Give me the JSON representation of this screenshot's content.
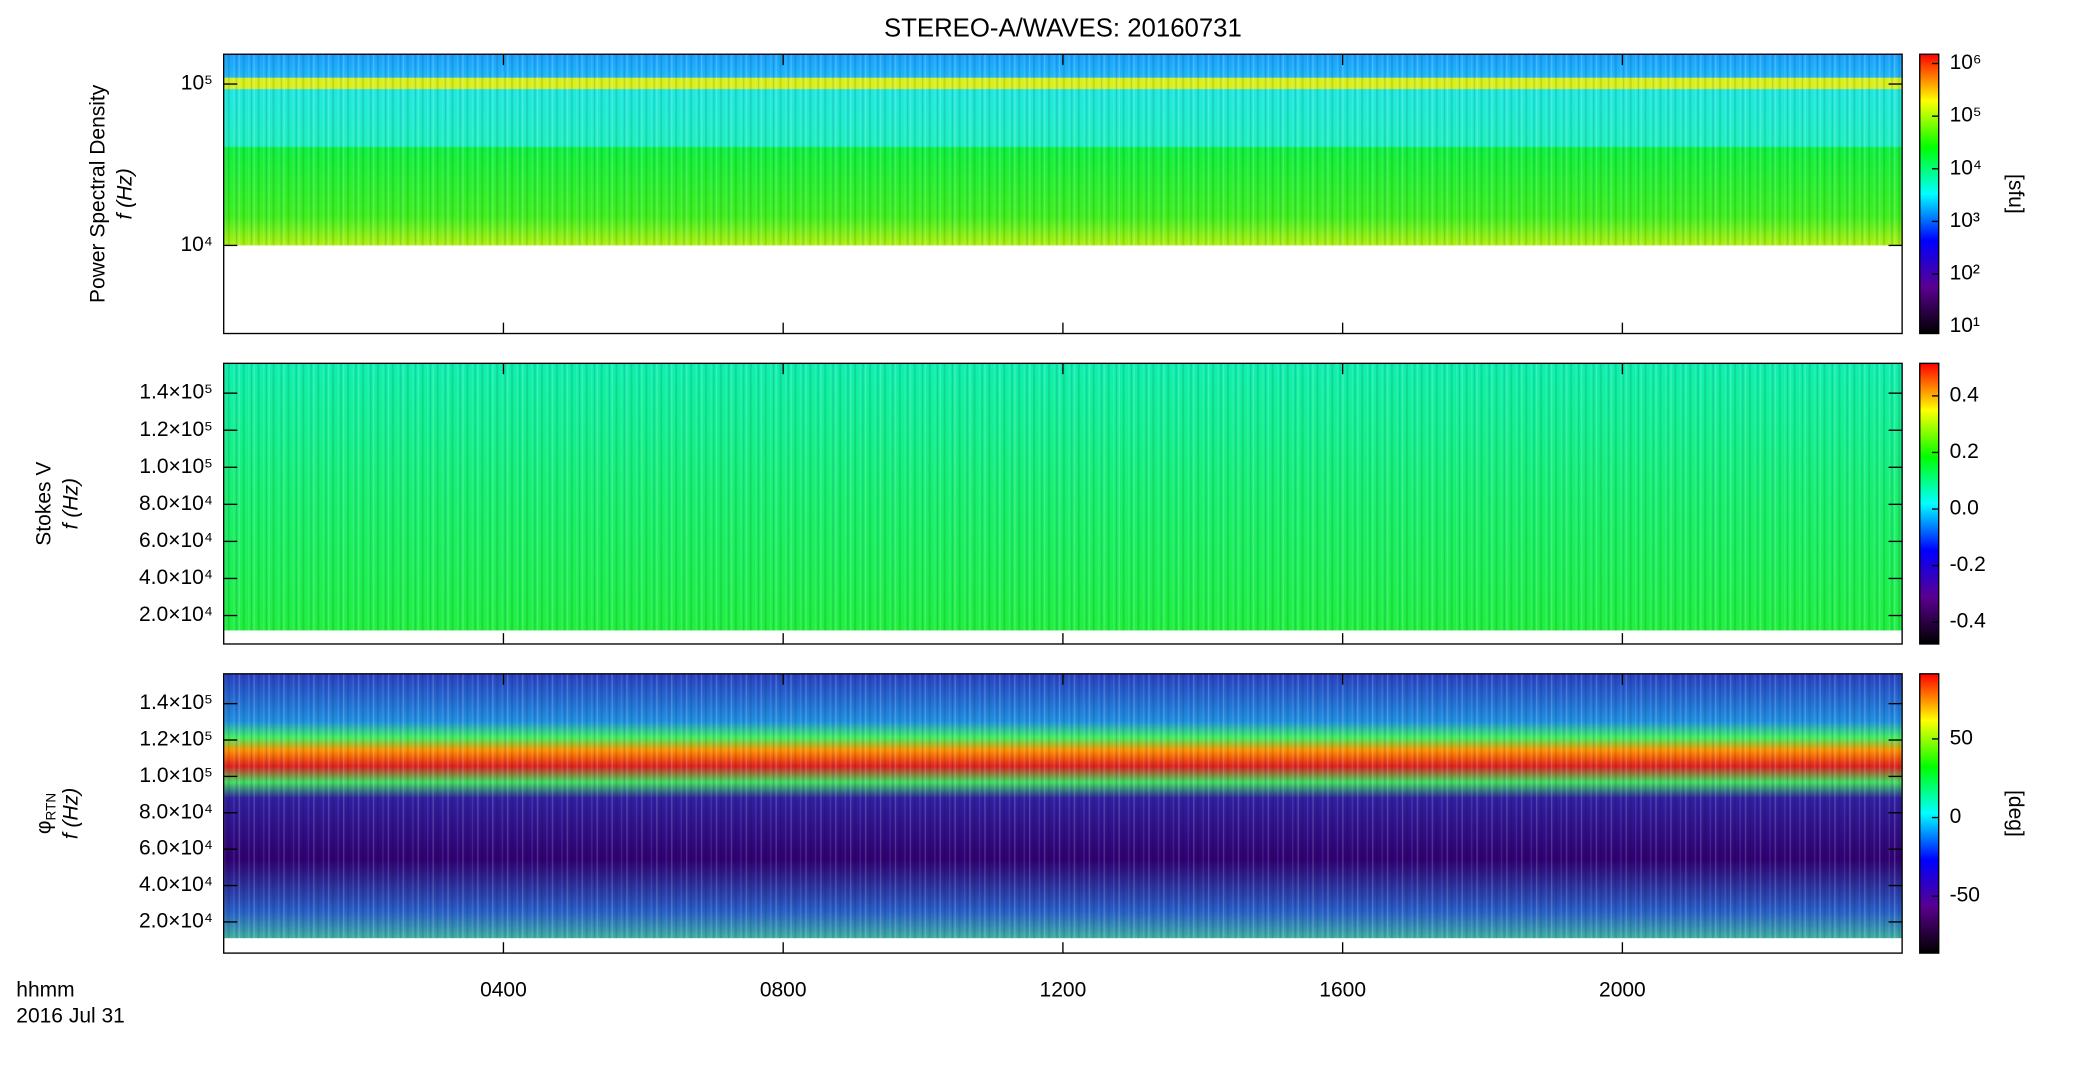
{
  "figure": {
    "title": "STEREO-A/WAVES: 20160731",
    "x_label": "hhmm",
    "date": "2016 Jul 31",
    "xlim": [
      0,
      24
    ],
    "xticks": [
      {
        "value": 4,
        "label": "0400"
      },
      {
        "value": 8,
        "label": "0800"
      },
      {
        "value": 12,
        "label": "1200"
      },
      {
        "value": 16,
        "label": "1600"
      },
      {
        "value": 20,
        "label": "2000"
      }
    ],
    "colormap": [
      "#000000",
      "#5a0090",
      "#0000ff",
      "#00ffff",
      "#00ff00",
      "#ffff00",
      "#ff0000"
    ]
  },
  "chart_data": [
    {
      "type": "heatmap",
      "quantity": "Power Spectral Density",
      "ylabel": "f (Hz)",
      "ylog": true,
      "ylim": [
        2845,
        153000
      ],
      "yticks": [
        {
          "value": 10000,
          "label": "10⁴"
        },
        {
          "value": 100000,
          "label": "10⁵"
        }
      ],
      "colorbar": {
        "log": true,
        "label": "[sfu]",
        "clim": [
          7.4,
          1500000
        ],
        "ticks": [
          {
            "value": 10,
            "label": "10¹"
          },
          {
            "value": 100,
            "label": "10²"
          },
          {
            "value": 1000,
            "label": "10³"
          },
          {
            "value": 10000,
            "label": "10⁴"
          },
          {
            "value": 100000,
            "label": "10⁵"
          },
          {
            "value": 1000000,
            "label": "10⁶"
          }
        ]
      }
    },
    {
      "type": "heatmap",
      "quantity": "Stokes V",
      "ylabel": "f (Hz)",
      "ylog": false,
      "ylim": [
        4634,
        156100
      ],
      "yticks": [
        {
          "value": 20000,
          "label": "2.0×10⁴"
        },
        {
          "value": 40000,
          "label": "4.0×10⁴"
        },
        {
          "value": 60000,
          "label": "6.0×10⁴"
        },
        {
          "value": 80000,
          "label": "8.0×10⁴"
        },
        {
          "value": 100000,
          "label": "1.0×10⁵"
        },
        {
          "value": 120000,
          "label": "1.2×10⁵"
        },
        {
          "value": 140000,
          "label": "1.4×10⁵"
        }
      ],
      "colorbar": {
        "log": false,
        "clim": [
          -0.477,
          0.515
        ],
        "ticks": [
          {
            "value": -0.4,
            "label": "-0.4"
          },
          {
            "value": -0.2,
            "label": "-0.2"
          },
          {
            "value": 0,
            "label": "0.0"
          },
          {
            "value": 0.2,
            "label": "0.2"
          },
          {
            "value": 0.4,
            "label": "0.4"
          }
        ]
      }
    },
    {
      "type": "heatmap",
      "quantity": "φ",
      "quantity_sub": "RTN",
      "ylabel": "f (Hz)",
      "ylog": false,
      "ylim": [
        2857,
        156400
      ],
      "yticks": [
        {
          "value": 20000,
          "label": "2.0×10⁴"
        },
        {
          "value": 40000,
          "label": "4.0×10⁴"
        },
        {
          "value": 60000,
          "label": "6.0×10⁴"
        },
        {
          "value": 80000,
          "label": "8.0×10⁴"
        },
        {
          "value": 100000,
          "label": "1.0×10⁵"
        },
        {
          "value": 120000,
          "label": "1.2×10⁵"
        },
        {
          "value": 140000,
          "label": "1.4×10⁵"
        }
      ],
      "colorbar": {
        "log": false,
        "label": "[deg]",
        "clim": [
          -86.2,
          91.4
        ],
        "ticks": [
          -50,
          0,
          50
        ]
      }
    }
  ]
}
